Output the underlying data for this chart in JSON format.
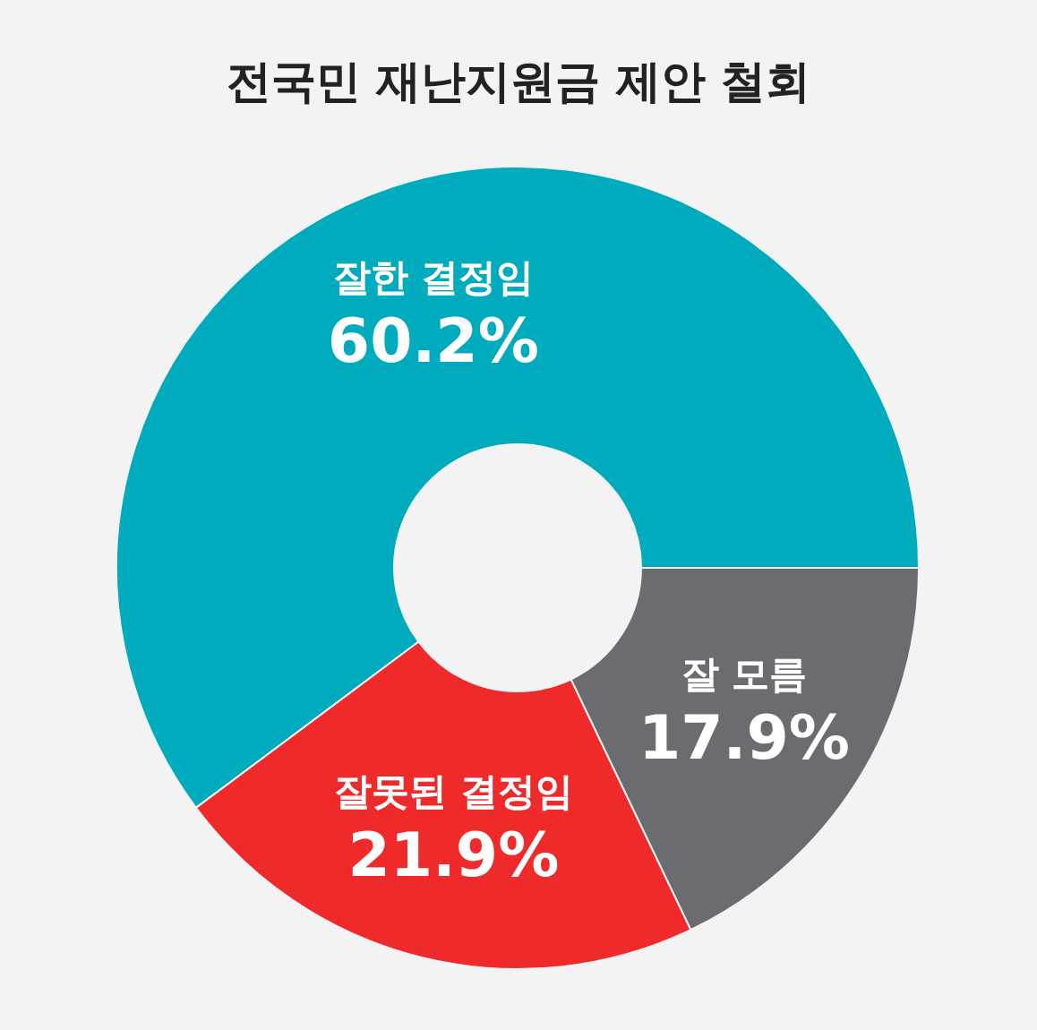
{
  "chart_data": {
    "type": "donut",
    "title": "전국민 재난지원금 제안 철회",
    "categories": [
      "잘한 결정임",
      "잘 모름",
      "잘못된 결정임"
    ],
    "values": [
      60.2,
      17.9,
      21.9
    ],
    "colors": [
      "#00abbe",
      "#6b6c70",
      "#ee2a2a"
    ],
    "value_labels": [
      "60.2%",
      "17.9%",
      "21.9%"
    ],
    "legend": false
  }
}
